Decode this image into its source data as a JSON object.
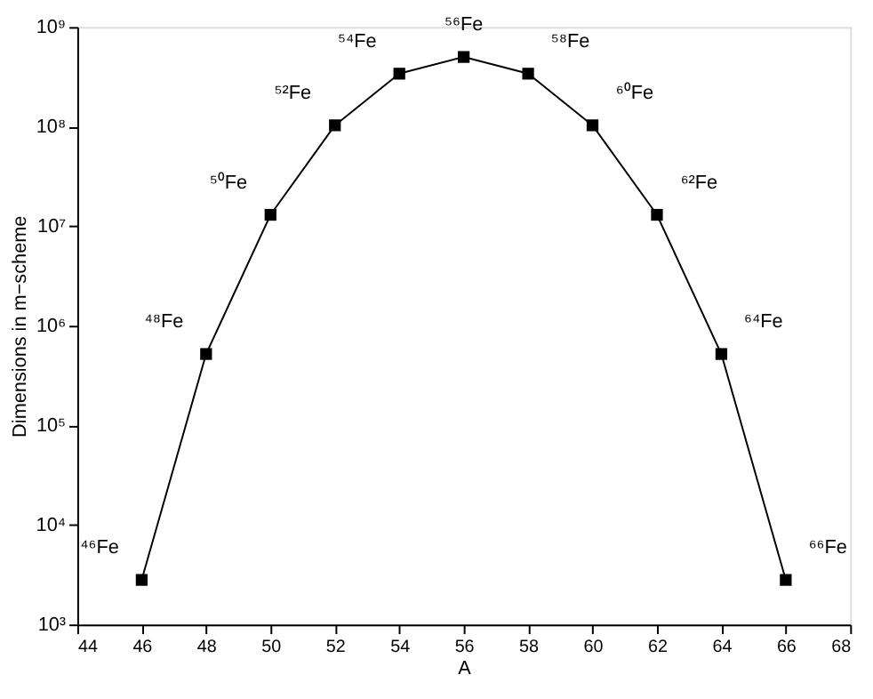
{
  "chart_data": {
    "type": "line",
    "xlabel": "A",
    "ylabel": "Dimensions in m−scheme",
    "x": [
      46,
      48,
      50,
      52,
      54,
      56,
      58,
      60,
      62,
      64,
      66
    ],
    "series": [
      {
        "color": "#000000",
        "values": [
          2800,
          520000,
          13000000,
          103000000,
          340000000,
          500000000,
          340000000,
          103000000,
          13000000,
          520000,
          2800
        ]
      }
    ],
    "marker": "square",
    "line_style": "solid",
    "log": "y",
    "grid": false,
    "xlim": [
      44,
      68
    ],
    "xticks": [
      44,
      46,
      48,
      50,
      52,
      54,
      56,
      58,
      60,
      62,
      64,
      66,
      68
    ],
    "ylim": [
      1000,
      1000000000
    ],
    "yticks": [
      {
        "value": 1000,
        "label": "10³"
      },
      {
        "value": 10000,
        "label": "10⁴"
      },
      {
        "value": 100000,
        "label": "10⁵"
      },
      {
        "value": 1000000,
        "label": "10⁶"
      },
      {
        "value": 10000000,
        "label": "10⁷"
      },
      {
        "value": 100000000,
        "label": "10⁸"
      },
      {
        "value": 1000000000,
        "label": "10⁹"
      }
    ],
    "annotations": [
      {
        "text": "⁴⁶Fe",
        "x": 46,
        "y": 2800
      },
      {
        "text": "⁴⁸Fe",
        "x": 48,
        "y": 520000
      },
      {
        "text": "⁵⁰Fe",
        "x": 50,
        "y": 13000000
      },
      {
        "text": "⁵²Fe",
        "x": 52,
        "y": 103000000
      },
      {
        "text": "⁵⁴Fe",
        "x": 54,
        "y": 340000000
      },
      {
        "text": "⁵⁶Fe",
        "x": 56,
        "y": 500000000
      },
      {
        "text": "⁵⁸Fe",
        "x": 58,
        "y": 340000000
      },
      {
        "text": "⁶⁰Fe",
        "x": 60,
        "y": 103000000
      },
      {
        "text": "⁶²Fe",
        "x": 62,
        "y": 13000000
      },
      {
        "text": "⁶⁴Fe",
        "x": 64,
        "y": 520000
      },
      {
        "text": "⁶⁶Fe",
        "x": 66,
        "y": 2800
      }
    ]
  }
}
